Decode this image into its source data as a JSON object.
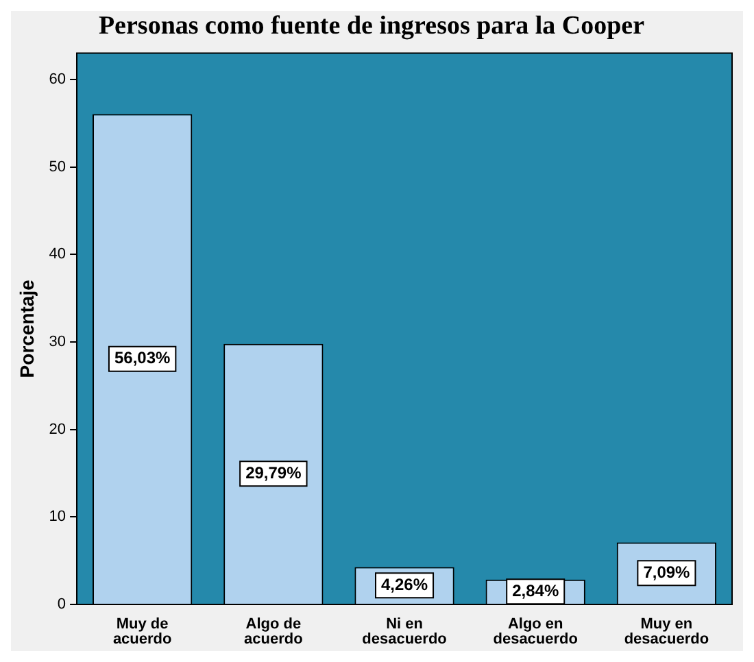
{
  "chart_data": {
    "type": "bar",
    "title": "Personas como fuente de ingresos para la Cooper",
    "ylabel": "Porcentaje",
    "categories": [
      "Muy de acuerdo",
      "Algo de acuerdo",
      "Ni en desacuerdo",
      "Algo en desacuerdo",
      "Muy en desacuerdo"
    ],
    "values": [
      56.03,
      29.79,
      4.26,
      2.84,
      7.09
    ],
    "color": "#b0d2ee",
    "value_labels": [
      "56,03%",
      "29,79%",
      "4,26%",
      "2,84%",
      "7,09%"
    ],
    "ylim": [
      0,
      63
    ],
    "yticks": [
      0,
      10,
      20,
      30,
      40,
      50,
      60
    ],
    "grid": false,
    "legend": false
  }
}
